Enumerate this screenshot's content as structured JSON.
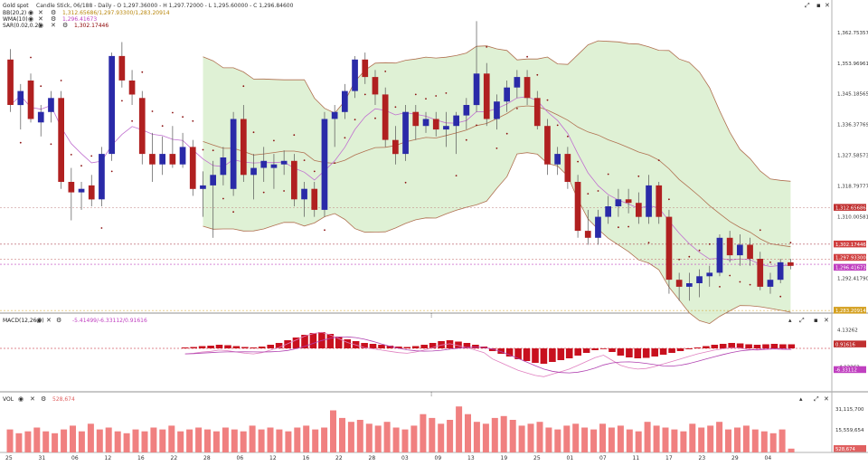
{
  "header": {
    "title": "Gold spot",
    "series_info": "Candle Stick, 06/188 - Daily - O 1,297.36000 - H 1,297.72000 - L 1,295.60000 - C 1,296.84600"
  },
  "indicators": [
    {
      "name": "BB(20,2)",
      "values": "1,312.65686/1,297.93300/1,283.20914",
      "color": "#b8860b"
    },
    {
      "name": "WMA(10)",
      "values": "1,296.41673",
      "color": "#c040c0"
    },
    {
      "name": "SAR(0.02,0.2)",
      "values": "1,302.17446",
      "color": "#8b0000"
    }
  ],
  "macd": {
    "label": "MACD(12,26,9)",
    "values": "-5.41499/-6.33112/0.91616"
  },
  "volume": {
    "label": "VOL",
    "value": "528,674"
  },
  "right_badges": {
    "bb_upper": "1,312.65686",
    "sar": "1,302.17446",
    "bb_mid": "1,297.93300",
    "wma": "1,296.41673",
    "bb_lower": "1,283.20914",
    "macd_hist": "0.91616",
    "macd_signal": "-6.33112",
    "vol": "528,674"
  },
  "colors": {
    "bull": "#2a2aa8",
    "bear": "#b02020",
    "band_fill": "#dcefd0",
    "band_line": "#b07050",
    "wma": "#c070d0",
    "sar": "#8b1010",
    "macd_hist": "#c8101e",
    "macd_line": "#e080c0",
    "macd_signal": "#b040b0",
    "vol_bar": "#f08080",
    "badge_bb": "#c03030",
    "badge_sar": "#d04040",
    "badge_wma": "#c040c0",
    "badge_lower": "#d4a020",
    "badge_vol": "#e06060"
  },
  "chart_data": [
    {
      "type": "candlestick",
      "name": "Gold spot",
      "ylim": [
        1283.5,
        1371.0
      ],
      "y_ticks": [
        1362.75357,
        1353.96961,
        1345.18565,
        1336.37769,
        1327.58573,
        1318.79777,
        1310.00581,
        1292.4179
      ],
      "x_labels": [
        "25",
        "31",
        "06",
        "12",
        "16",
        "22",
        "28",
        "06",
        "12",
        "16",
        "22",
        "28",
        "03",
        "09",
        "13",
        "19",
        "25",
        "01",
        "07",
        "11",
        "17",
        "23",
        "29",
        "04"
      ],
      "candles": [
        {
          "o": 1355,
          "h": 1358,
          "l": 1340,
          "c": 1342
        },
        {
          "o": 1342,
          "h": 1348,
          "l": 1335,
          "c": 1346
        },
        {
          "o": 1349,
          "h": 1351,
          "l": 1337,
          "c": 1338
        },
        {
          "o": 1337,
          "h": 1342,
          "l": 1333,
          "c": 1340
        },
        {
          "o": 1340,
          "h": 1346,
          "l": 1337,
          "c": 1344
        },
        {
          "o": 1344,
          "h": 1346,
          "l": 1318,
          "c": 1320
        },
        {
          "o": 1320,
          "h": 1324,
          "l": 1309,
          "c": 1317
        },
        {
          "o": 1317,
          "h": 1320,
          "l": 1312,
          "c": 1318
        },
        {
          "o": 1319,
          "h": 1322,
          "l": 1313,
          "c": 1315
        },
        {
          "o": 1315,
          "h": 1330,
          "l": 1313,
          "c": 1328
        },
        {
          "o": 1328,
          "h": 1357,
          "l": 1326,
          "c": 1356
        },
        {
          "o": 1356,
          "h": 1360,
          "l": 1347,
          "c": 1349
        },
        {
          "o": 1349,
          "h": 1352,
          "l": 1342,
          "c": 1345
        },
        {
          "o": 1344,
          "h": 1346,
          "l": 1325,
          "c": 1328
        },
        {
          "o": 1328,
          "h": 1334,
          "l": 1320,
          "c": 1325
        },
        {
          "o": 1325,
          "h": 1333,
          "l": 1322,
          "c": 1328
        },
        {
          "o": 1328,
          "h": 1336,
          "l": 1324,
          "c": 1325
        },
        {
          "o": 1325,
          "h": 1334,
          "l": 1324,
          "c": 1330
        },
        {
          "o": 1330,
          "h": 1332,
          "l": 1316,
          "c": 1318
        },
        {
          "o": 1318,
          "h": 1323,
          "l": 1310,
          "c": 1319
        },
        {
          "o": 1319,
          "h": 1326,
          "l": 1304,
          "c": 1322
        },
        {
          "o": 1322,
          "h": 1330,
          "l": 1319,
          "c": 1327
        },
        {
          "o": 1318,
          "h": 1340,
          "l": 1316,
          "c": 1338
        },
        {
          "o": 1338,
          "h": 1342,
          "l": 1320,
          "c": 1322
        },
        {
          "o": 1322,
          "h": 1328,
          "l": 1315,
          "c": 1324
        },
        {
          "o": 1324,
          "h": 1330,
          "l": 1320,
          "c": 1326
        },
        {
          "o": 1324,
          "h": 1328,
          "l": 1318,
          "c": 1325
        },
        {
          "o": 1325,
          "h": 1329,
          "l": 1322,
          "c": 1326
        },
        {
          "o": 1326,
          "h": 1328,
          "l": 1313,
          "c": 1315
        },
        {
          "o": 1315,
          "h": 1320,
          "l": 1310,
          "c": 1318
        },
        {
          "o": 1318,
          "h": 1320,
          "l": 1310,
          "c": 1312
        },
        {
          "o": 1312,
          "h": 1340,
          "l": 1310,
          "c": 1338
        },
        {
          "o": 1338,
          "h": 1342,
          "l": 1330,
          "c": 1340
        },
        {
          "o": 1340,
          "h": 1348,
          "l": 1338,
          "c": 1346
        },
        {
          "o": 1346,
          "h": 1356,
          "l": 1344,
          "c": 1355
        },
        {
          "o": 1355,
          "h": 1357,
          "l": 1348,
          "c": 1350
        },
        {
          "o": 1350,
          "h": 1352,
          "l": 1342,
          "c": 1345
        },
        {
          "o": 1345,
          "h": 1347,
          "l": 1330,
          "c": 1332
        },
        {
          "o": 1332,
          "h": 1336,
          "l": 1325,
          "c": 1328
        },
        {
          "o": 1328,
          "h": 1342,
          "l": 1326,
          "c": 1340
        },
        {
          "o": 1340,
          "h": 1342,
          "l": 1332,
          "c": 1336
        },
        {
          "o": 1336,
          "h": 1340,
          "l": 1334,
          "c": 1338
        },
        {
          "o": 1338,
          "h": 1340,
          "l": 1333,
          "c": 1335
        },
        {
          "o": 1335,
          "h": 1340,
          "l": 1330,
          "c": 1336
        },
        {
          "o": 1336,
          "h": 1340,
          "l": 1328,
          "c": 1339
        },
        {
          "o": 1339,
          "h": 1344,
          "l": 1335,
          "c": 1342
        },
        {
          "o": 1342,
          "h": 1366,
          "l": 1340,
          "c": 1351
        },
        {
          "o": 1351,
          "h": 1354,
          "l": 1336,
          "c": 1338
        },
        {
          "o": 1338,
          "h": 1345,
          "l": 1335,
          "c": 1343
        },
        {
          "o": 1343,
          "h": 1349,
          "l": 1340,
          "c": 1347
        },
        {
          "o": 1347,
          "h": 1352,
          "l": 1344,
          "c": 1350
        },
        {
          "o": 1350,
          "h": 1352,
          "l": 1342,
          "c": 1344
        },
        {
          "o": 1344,
          "h": 1346,
          "l": 1335,
          "c": 1336
        },
        {
          "o": 1336,
          "h": 1338,
          "l": 1322,
          "c": 1325
        },
        {
          "o": 1325,
          "h": 1330,
          "l": 1322,
          "c": 1328
        },
        {
          "o": 1328,
          "h": 1330,
          "l": 1318,
          "c": 1320
        },
        {
          "o": 1320,
          "h": 1322,
          "l": 1304,
          "c": 1306
        },
        {
          "o": 1306,
          "h": 1312,
          "l": 1302,
          "c": 1304
        },
        {
          "o": 1304,
          "h": 1312,
          "l": 1302,
          "c": 1310
        },
        {
          "o": 1310,
          "h": 1316,
          "l": 1308,
          "c": 1313
        },
        {
          "o": 1313,
          "h": 1318,
          "l": 1310,
          "c": 1315
        },
        {
          "o": 1315,
          "h": 1318,
          "l": 1311,
          "c": 1314
        },
        {
          "o": 1314,
          "h": 1317,
          "l": 1308,
          "c": 1310
        },
        {
          "o": 1310,
          "h": 1322,
          "l": 1308,
          "c": 1319
        },
        {
          "o": 1319,
          "h": 1320,
          "l": 1308,
          "c": 1310
        },
        {
          "o": 1310,
          "h": 1312,
          "l": 1288,
          "c": 1292
        },
        {
          "o": 1292,
          "h": 1294,
          "l": 1286,
          "c": 1290
        },
        {
          "o": 1290,
          "h": 1294,
          "l": 1286,
          "c": 1291
        },
        {
          "o": 1291,
          "h": 1295,
          "l": 1287,
          "c": 1293
        },
        {
          "o": 1293,
          "h": 1296,
          "l": 1290,
          "c": 1294
        },
        {
          "o": 1294,
          "h": 1305,
          "l": 1293,
          "c": 1304
        },
        {
          "o": 1304,
          "h": 1306,
          "l": 1297,
          "c": 1299
        },
        {
          "o": 1299,
          "h": 1305,
          "l": 1296,
          "c": 1302
        },
        {
          "o": 1302,
          "h": 1304,
          "l": 1296,
          "c": 1298
        },
        {
          "o": 1298,
          "h": 1300,
          "l": 1289,
          "c": 1290
        },
        {
          "o": 1290,
          "h": 1294,
          "l": 1288,
          "c": 1292
        },
        {
          "o": 1292,
          "h": 1298,
          "l": 1291,
          "c": 1297
        },
        {
          "o": 1297,
          "h": 1298,
          "l": 1295,
          "c": 1296
        }
      ]
    },
    {
      "type": "bar",
      "name": "MACD(12,26,9)",
      "ylim": [
        -9.0,
        5.0
      ],
      "y_ticks": [
        4.13262,
        -4.13262
      ],
      "values": [
        0.2,
        0.3,
        0.5,
        0.6,
        0.8,
        0.7,
        0.5,
        0.3,
        0.2,
        0.4,
        0.8,
        1.2,
        1.8,
        2.4,
        3.0,
        3.4,
        3.6,
        3.2,
        2.6,
        2.0,
        1.6,
        1.2,
        1.0,
        0.8,
        0.6,
        0.4,
        0.3,
        0.5,
        0.8,
        1.2,
        1.6,
        1.8,
        1.5,
        1.2,
        0.8,
        0.4,
        -0.6,
        -1.2,
        -1.8,
        -2.4,
        -2.8,
        -3.2,
        -3.4,
        -3.0,
        -2.6,
        -2.2,
        -1.6,
        -1.0,
        -0.4,
        0,
        -0.8,
        -1.6,
        -2.0,
        -2.2,
        -2.1,
        -1.8,
        -1.4,
        -1.0,
        -0.6,
        -0.2,
        0.2,
        0.5,
        0.8,
        1.0,
        1.2,
        1.1,
        0.9,
        0.8,
        0.9,
        1.0,
        0.9,
        0.9
      ]
    },
    {
      "type": "bar",
      "name": "VOL",
      "ylim": [
        0,
        40000000
      ],
      "y_ticks": [
        31115700,
        15559654
      ],
      "values": [
        12,
        10,
        11,
        13,
        11,
        10,
        12,
        14,
        11,
        15,
        12,
        13,
        11,
        10,
        12,
        11,
        13,
        12,
        14,
        11,
        12,
        13,
        12,
        11,
        13,
        12,
        11,
        14,
        12,
        13,
        12,
        11,
        13,
        14,
        12,
        13,
        22,
        18,
        16,
        17,
        15,
        14,
        16,
        13,
        12,
        14,
        20,
        18,
        15,
        17,
        24,
        20,
        16,
        15,
        18,
        19,
        17,
        14,
        15,
        16,
        13,
        12,
        14,
        15,
        13,
        12,
        15,
        13,
        14,
        12,
        11,
        16,
        14,
        13,
        12,
        11,
        15,
        13,
        14,
        16,
        12,
        13,
        14,
        12,
        11,
        10,
        12,
        2
      ]
    }
  ]
}
